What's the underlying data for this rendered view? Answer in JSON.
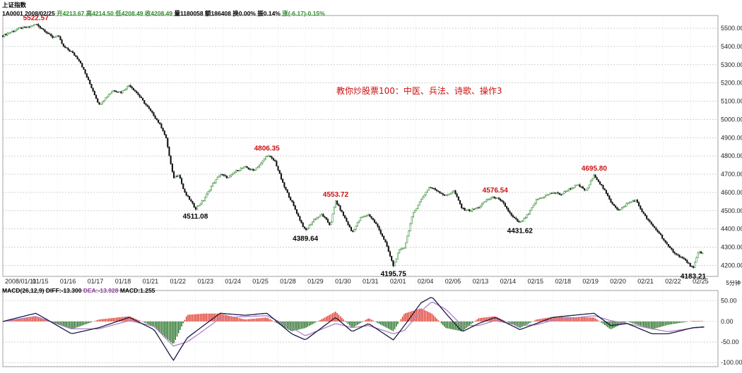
{
  "header": {
    "index_name": "上证指数",
    "code": "1A0001",
    "date": "2008/02/25",
    "open": "开4213.67",
    "high": "高4214.50",
    "low": "低4208.49",
    "close": "收4208.49",
    "volume": "量1180058",
    "amount": "额186408",
    "turnover": "换0.00%",
    "amplitude": "振0.14%",
    "change": "涨(-6.17)-0.15%"
  },
  "macd_header": {
    "label": "MACD(26,12,9)",
    "diff": "DIFF:-13.300",
    "dea": "DEA:-13.928",
    "macd": "MACD:1.255"
  },
  "overlay_text": "教你炒股票100：中医、兵法、诗歌、操作3",
  "timeframe_label": "5分钟",
  "colors": {
    "up": "#2e8b2e",
    "down": "#111111",
    "hist_pos": "#e03020",
    "hist_neg": "#1a6a1a",
    "diff_line": "#1a1a4a",
    "dea_line": "#b080c0",
    "annotation_high": "#cc1111",
    "annotation_low": "#000000",
    "grid": "#b5b5b5"
  },
  "chart_data": {
    "type": "candlestick",
    "interval": "5分钟",
    "date_range": [
      "2008/01/11",
      "2008/02/25"
    ],
    "x_axis_labels": [
      "2008/01/11",
      "01/15",
      "01/16",
      "01/17",
      "01/18",
      "01/21",
      "01/22",
      "01/23",
      "01/24",
      "01/25",
      "01/28",
      "01/29",
      "01/30",
      "01/31",
      "02/01",
      "02/04",
      "02/05",
      "02/13",
      "02/14",
      "02/15",
      "02/18",
      "02/19",
      "02/20",
      "02/21",
      "02/22",
      "02/25"
    ],
    "price_axis": {
      "ticks": [
        4200,
        4300,
        4400,
        4500,
        4600,
        4700,
        4800,
        4900,
        5000,
        5100,
        5200,
        5300,
        5400,
        5500
      ],
      "ylim": [
        4140,
        5570
      ]
    },
    "close_path": [
      [
        0,
        5460
      ],
      [
        0.3,
        5480
      ],
      [
        0.6,
        5500
      ],
      [
        0.9,
        5505
      ],
      [
        1.2,
        5522.57
      ],
      [
        1.5,
        5490
      ],
      [
        1.8,
        5450
      ],
      [
        2.0,
        5460
      ],
      [
        2.2,
        5400
      ],
      [
        2.5,
        5370
      ],
      [
        2.8,
        5320
      ],
      [
        3.0,
        5250
      ],
      [
        3.3,
        5150
      ],
      [
        3.5,
        5080
      ],
      [
        3.8,
        5130
      ],
      [
        4.0,
        5160
      ],
      [
        4.3,
        5150
      ],
      [
        4.6,
        5190
      ],
      [
        4.9,
        5140
      ],
      [
        5.2,
        5080
      ],
      [
        5.5,
        5020
      ],
      [
        5.8,
        4950
      ],
      [
        5.95,
        4890
      ],
      [
        6.05,
        4800
      ],
      [
        6.2,
        4680
      ],
      [
        6.4,
        4700
      ],
      [
        6.6,
        4600
      ],
      [
        6.8,
        4560
      ],
      [
        7.0,
        4511.08
      ],
      [
        7.3,
        4560
      ],
      [
        7.6,
        4640
      ],
      [
        7.9,
        4700
      ],
      [
        8.2,
        4680
      ],
      [
        8.5,
        4720
      ],
      [
        8.8,
        4740
      ],
      [
        9.1,
        4720
      ],
      [
        9.4,
        4760
      ],
      [
        9.6,
        4806.35
      ],
      [
        9.9,
        4770
      ],
      [
        10.2,
        4640
      ],
      [
        10.5,
        4550
      ],
      [
        10.8,
        4450
      ],
      [
        11.0,
        4389.64
      ],
      [
        11.3,
        4450
      ],
      [
        11.6,
        4480
      ],
      [
        11.9,
        4420
      ],
      [
        12.1,
        4553.72
      ],
      [
        12.4,
        4470
      ],
      [
        12.7,
        4380
      ],
      [
        13.0,
        4460
      ],
      [
        13.3,
        4480
      ],
      [
        13.6,
        4420
      ],
      [
        13.9,
        4330
      ],
      [
        14.2,
        4195.75
      ],
      [
        14.4,
        4280
      ],
      [
        14.6,
        4300
      ],
      [
        14.9,
        4480
      ],
      [
        15.2,
        4560
      ],
      [
        15.5,
        4630
      ],
      [
        15.8,
        4610
      ],
      [
        16.1,
        4580
      ],
      [
        16.4,
        4610
      ],
      [
        16.7,
        4510
      ],
      [
        17.0,
        4500
      ],
      [
        17.3,
        4520
      ],
      [
        17.6,
        4560
      ],
      [
        17.9,
        4576.54
      ],
      [
        18.2,
        4540
      ],
      [
        18.5,
        4470
      ],
      [
        18.8,
        4431.62
      ],
      [
        19.1,
        4480
      ],
      [
        19.4,
        4560
      ],
      [
        19.7,
        4580
      ],
      [
        20.0,
        4600
      ],
      [
        20.3,
        4590
      ],
      [
        20.6,
        4620
      ],
      [
        20.9,
        4640
      ],
      [
        21.2,
        4610
      ],
      [
        21.5,
        4695.8
      ],
      [
        21.8,
        4630
      ],
      [
        22.1,
        4550
      ],
      [
        22.4,
        4500
      ],
      [
        22.7,
        4540
      ],
      [
        23.0,
        4560
      ],
      [
        23.3,
        4480
      ],
      [
        23.6,
        4420
      ],
      [
        23.9,
        4370
      ],
      [
        24.2,
        4300
      ],
      [
        24.5,
        4260
      ],
      [
        24.8,
        4230
      ],
      [
        25.1,
        4183.21
      ],
      [
        25.3,
        4280
      ],
      [
        25.5,
        4260
      ]
    ],
    "annotations": [
      {
        "label": "5522.57",
        "type": "high",
        "x": 1.2,
        "y": 5522.57
      },
      {
        "label": "4511.08",
        "type": "low",
        "x": 7.0,
        "y": 4511.08
      },
      {
        "label": "4806.35",
        "type": "high",
        "x": 9.6,
        "y": 4806.35
      },
      {
        "label": "4389.64",
        "type": "low",
        "x": 11.0,
        "y": 4389.64
      },
      {
        "label": "4553.72",
        "type": "high",
        "x": 12.1,
        "y": 4553.72
      },
      {
        "label": "4195.75",
        "type": "low",
        "x": 14.2,
        "y": 4195.75
      },
      {
        "label": "4576.54",
        "type": "high",
        "x": 17.9,
        "y": 4576.54
      },
      {
        "label": "4431.62",
        "type": "low",
        "x": 18.8,
        "y": 4431.62
      },
      {
        "label": "4695.80",
        "type": "high",
        "x": 21.5,
        "y": 4695.8
      },
      {
        "label": "4183.21",
        "type": "low",
        "x": 25.1,
        "y": 4183.21
      }
    ],
    "macd_axis": {
      "ticks": [
        50.0,
        0.0,
        -50.0,
        -100.0
      ],
      "ylim": [
        -110,
        65
      ]
    },
    "macd_diff_path": [
      [
        0,
        0
      ],
      [
        1.2,
        20
      ],
      [
        2.5,
        -30
      ],
      [
        3.5,
        -15
      ],
      [
        4.6,
        10
      ],
      [
        5.5,
        -20
      ],
      [
        6.2,
        -95
      ],
      [
        6.7,
        -40
      ],
      [
        7.3,
        -10
      ],
      [
        7.9,
        20
      ],
      [
        8.8,
        15
      ],
      [
        9.6,
        20
      ],
      [
        10.5,
        -30
      ],
      [
        11.0,
        -45
      ],
      [
        12.1,
        10
      ],
      [
        12.7,
        -25
      ],
      [
        13.3,
        -5
      ],
      [
        14.2,
        -45
      ],
      [
        14.6,
        -10
      ],
      [
        15.2,
        45
      ],
      [
        15.6,
        60
      ],
      [
        16.1,
        20
      ],
      [
        16.7,
        -25
      ],
      [
        17.3,
        -5
      ],
      [
        17.9,
        10
      ],
      [
        18.8,
        -20
      ],
      [
        19.4,
        -5
      ],
      [
        20.0,
        10
      ],
      [
        21.5,
        20
      ],
      [
        22.1,
        -10
      ],
      [
        22.7,
        -5
      ],
      [
        23.6,
        -30
      ],
      [
        24.2,
        -30
      ],
      [
        25.1,
        -15
      ],
      [
        25.5,
        -13.3
      ]
    ],
    "macd_dea_path": [
      [
        0,
        0
      ],
      [
        1.2,
        12
      ],
      [
        2.5,
        -18
      ],
      [
        3.5,
        -18
      ],
      [
        4.6,
        2
      ],
      [
        5.5,
        -12
      ],
      [
        6.2,
        -60
      ],
      [
        6.7,
        -50
      ],
      [
        7.3,
        -22
      ],
      [
        7.9,
        8
      ],
      [
        8.8,
        12
      ],
      [
        9.6,
        14
      ],
      [
        10.5,
        -15
      ],
      [
        11.0,
        -35
      ],
      [
        12.1,
        -5
      ],
      [
        12.7,
        -15
      ],
      [
        13.3,
        -10
      ],
      [
        14.2,
        -30
      ],
      [
        14.6,
        -22
      ],
      [
        15.2,
        25
      ],
      [
        15.6,
        48
      ],
      [
        16.1,
        30
      ],
      [
        16.7,
        -10
      ],
      [
        17.3,
        -10
      ],
      [
        17.9,
        2
      ],
      [
        18.8,
        -10
      ],
      [
        19.4,
        -8
      ],
      [
        20.0,
        3
      ],
      [
        21.5,
        14
      ],
      [
        22.1,
        2
      ],
      [
        22.7,
        -5
      ],
      [
        23.6,
        -18
      ],
      [
        24.2,
        -25
      ],
      [
        25.1,
        -16
      ],
      [
        25.5,
        -13.928
      ]
    ]
  }
}
